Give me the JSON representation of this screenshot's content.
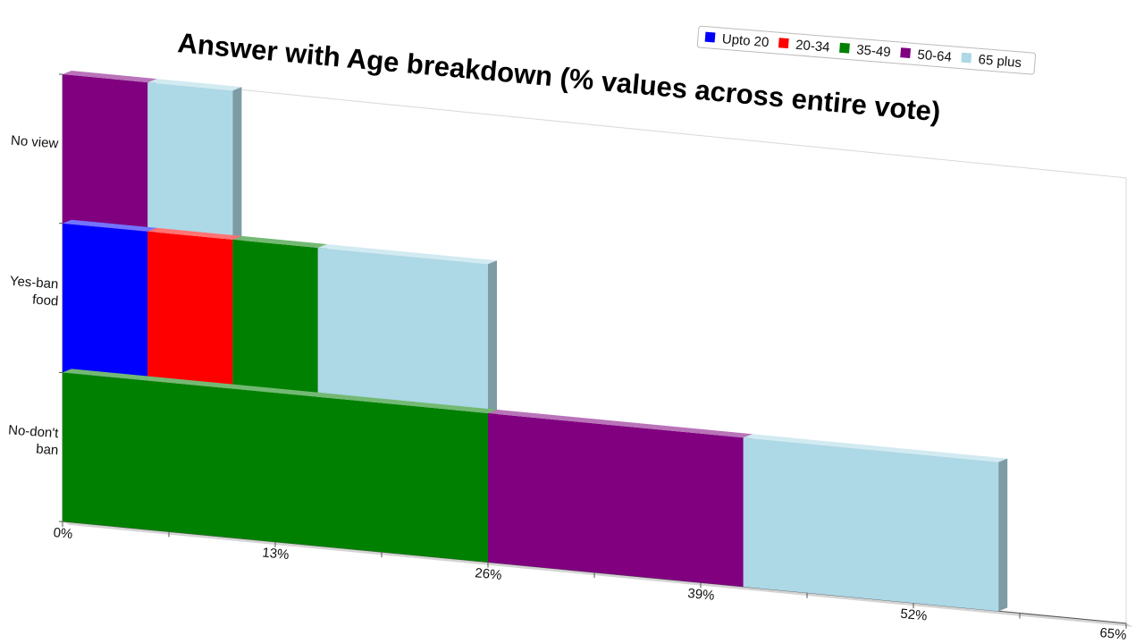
{
  "chart_data": {
    "type": "bar",
    "orientation": "horizontal",
    "stacked": true,
    "title": "Answer with Age breakdown (% values across entire vote)",
    "categories": [
      "No view",
      "Yes-ban food",
      "No-don't ban"
    ],
    "category_label_lines": [
      [
        "No view"
      ],
      [
        "Yes-ban",
        "food"
      ],
      [
        "No-don't",
        "ban"
      ]
    ],
    "xlim": [
      0,
      65
    ],
    "xticks": [
      0,
      13,
      26,
      39,
      52,
      65
    ],
    "tick_labels": [
      "0%",
      "13%",
      "26%",
      "39%",
      "52%",
      "65%"
    ],
    "legend_position": "top-right",
    "series": [
      {
        "name": "Upto 20",
        "color": "#0000ff",
        "values": [
          0,
          5.2,
          0
        ]
      },
      {
        "name": "20-34",
        "color": "#ff0000",
        "values": [
          0,
          5.2,
          0
        ]
      },
      {
        "name": "35-49",
        "color": "#008000",
        "values": [
          0,
          5.2,
          26
        ]
      },
      {
        "name": "50-64",
        "color": "#800080",
        "values": [
          5.2,
          0,
          15.6
        ]
      },
      {
        "name": "65 plus",
        "color": "#add8e6",
        "values": [
          5.2,
          10.4,
          15.6
        ]
      }
    ]
  }
}
